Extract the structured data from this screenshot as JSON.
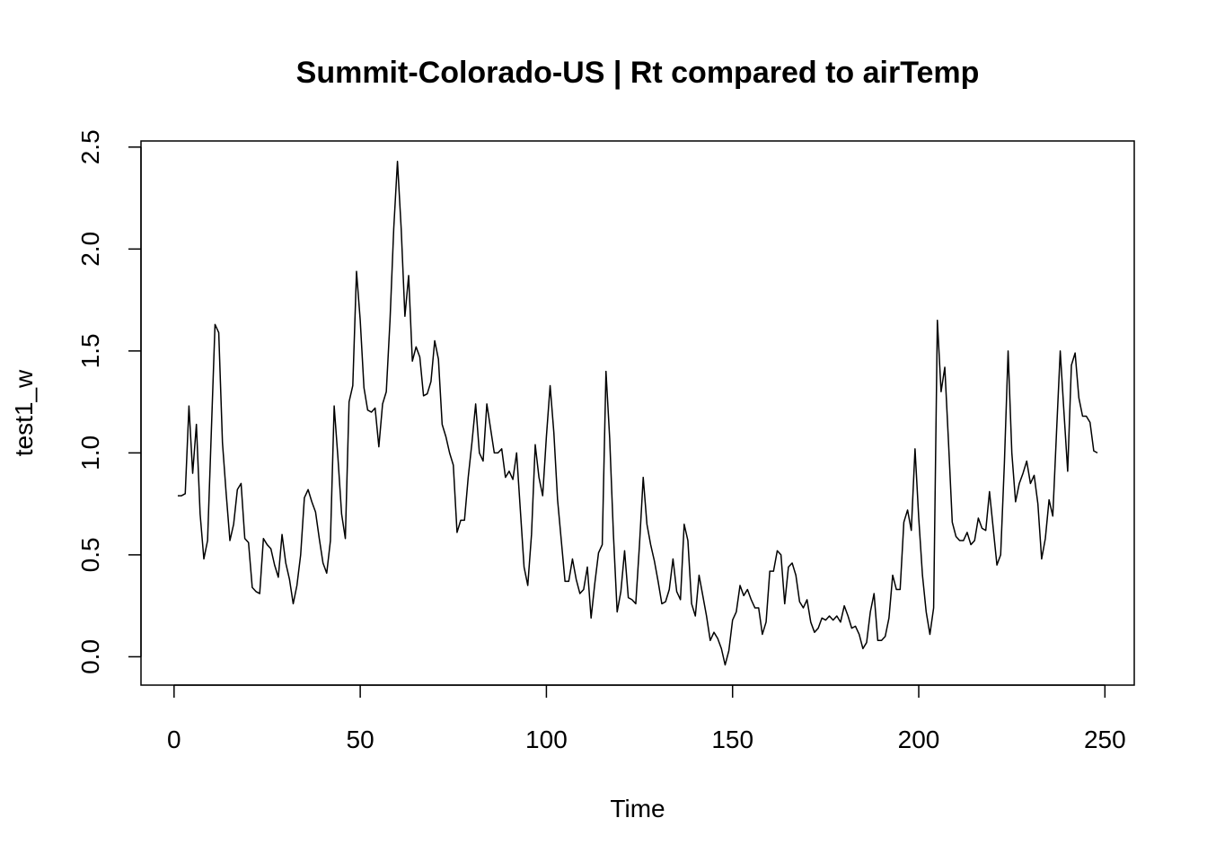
{
  "chart_data": {
    "type": "line",
    "title": "Summit-Colorado-US | Rt compared to airTemp",
    "x_label": "Time",
    "y_label": "test1_w",
    "color": "#000000",
    "xlim": [
      -8.88,
      257.88
    ],
    "ylim": [
      -0.139,
      2.53
    ],
    "xticks": [
      0,
      50,
      100,
      150,
      200,
      250
    ],
    "yticks": [
      {
        "value": 0,
        "label": "0.0"
      },
      0.5,
      {
        "value": 1,
        "label": "1.0"
      },
      1.5,
      {
        "value": 2,
        "label": "2.0"
      },
      2.5
    ],
    "x": [
      1,
      2,
      3,
      4,
      5,
      6,
      7,
      8,
      9,
      10,
      11,
      12,
      13,
      14,
      15,
      16,
      17,
      18,
      19,
      20,
      21,
      22,
      23,
      24,
      25,
      26,
      27,
      28,
      29,
      30,
      31,
      32,
      33,
      34,
      35,
      36,
      37,
      38,
      39,
      40,
      41,
      42,
      43,
      44,
      45,
      46,
      47,
      48,
      49,
      50,
      51,
      52,
      53,
      54,
      55,
      56,
      57,
      58,
      59,
      60,
      61,
      62,
      63,
      64,
      65,
      66,
      67,
      68,
      69,
      70,
      71,
      72,
      73,
      74,
      75,
      76,
      77,
      78,
      79,
      80,
      81,
      82,
      83,
      84,
      85,
      86,
      87,
      88,
      89,
      90,
      91,
      92,
      93,
      94,
      95,
      96,
      97,
      98,
      99,
      100,
      101,
      102,
      103,
      104,
      105,
      106,
      107,
      108,
      109,
      110,
      111,
      112,
      113,
      114,
      115,
      116,
      117,
      118,
      119,
      120,
      121,
      122,
      123,
      124,
      125,
      126,
      127,
      128,
      129,
      130,
      131,
      132,
      133,
      134,
      135,
      136,
      137,
      138,
      139,
      140,
      141,
      142,
      143,
      144,
      145,
      146,
      147,
      148,
      149,
      150,
      151,
      152,
      153,
      154,
      155,
      156,
      157,
      158,
      159,
      160,
      161,
      162,
      163,
      164,
      165,
      166,
      167,
      168,
      169,
      170,
      171,
      172,
      173,
      174,
      175,
      176,
      177,
      178,
      179,
      180,
      181,
      182,
      183,
      184,
      185,
      186,
      187,
      188,
      189,
      190,
      191,
      192,
      193,
      194,
      195,
      196,
      197,
      198,
      199,
      200,
      201,
      202,
      203,
      204,
      205,
      206,
      207,
      208,
      209,
      210,
      211,
      212,
      213,
      214,
      215,
      216,
      217,
      218,
      219,
      220,
      221,
      222,
      223,
      224,
      225,
      226,
      227,
      228,
      229,
      230,
      231,
      232,
      233,
      234,
      235,
      236,
      237,
      238,
      239,
      240,
      241,
      242,
      243,
      244,
      245,
      246,
      247,
      248
    ],
    "values": [
      0.79,
      0.79,
      0.8,
      1.23,
      0.9,
      1.14,
      0.7,
      0.48,
      0.57,
      1.1,
      1.63,
      1.59,
      1.05,
      0.8,
      0.57,
      0.65,
      0.82,
      0.85,
      0.58,
      0.56,
      0.34,
      0.32,
      0.31,
      0.58,
      0.55,
      0.53,
      0.45,
      0.39,
      0.6,
      0.46,
      0.38,
      0.26,
      0.35,
      0.5,
      0.78,
      0.82,
      0.76,
      0.71,
      0.58,
      0.46,
      0.41,
      0.57,
      1.23,
      0.98,
      0.7,
      0.58,
      1.25,
      1.33,
      1.89,
      1.65,
      1.32,
      1.21,
      1.2,
      1.22,
      1.03,
      1.24,
      1.3,
      1.65,
      2.1,
      2.43,
      2.1,
      1.67,
      1.87,
      1.45,
      1.52,
      1.47,
      1.28,
      1.29,
      1.35,
      1.55,
      1.46,
      1.14,
      1.08,
      1.0,
      0.94,
      0.61,
      0.67,
      0.67,
      0.88,
      1.05,
      1.24,
      1.0,
      0.96,
      1.24,
      1.12,
      1.0,
      1.0,
      1.02,
      0.88,
      0.91,
      0.87,
      1.0,
      0.72,
      0.44,
      0.35,
      0.6,
      1.04,
      0.88,
      0.79,
      1.08,
      1.33,
      1.1,
      0.77,
      0.57,
      0.37,
      0.37,
      0.48,
      0.38,
      0.31,
      0.33,
      0.44,
      0.19,
      0.36,
      0.51,
      0.55,
      1.4,
      1.07,
      0.6,
      0.22,
      0.32,
      0.52,
      0.29,
      0.28,
      0.26,
      0.55,
      0.88,
      0.65,
      0.55,
      0.47,
      0.37,
      0.26,
      0.27,
      0.33,
      0.48,
      0.32,
      0.28,
      0.65,
      0.57,
      0.26,
      0.2,
      0.4,
      0.3,
      0.2,
      0.08,
      0.12,
      0.09,
      0.04,
      -0.04,
      0.03,
      0.18,
      0.22,
      0.35,
      0.3,
      0.33,
      0.28,
      0.24,
      0.24,
      0.11,
      0.17,
      0.42,
      0.42,
      0.52,
      0.5,
      0.26,
      0.44,
      0.46,
      0.4,
      0.27,
      0.24,
      0.28,
      0.17,
      0.12,
      0.14,
      0.19,
      0.18,
      0.2,
      0.18,
      0.2,
      0.17,
      0.25,
      0.2,
      0.14,
      0.15,
      0.11,
      0.04,
      0.07,
      0.22,
      0.31,
      0.08,
      0.08,
      0.1,
      0.19,
      0.4,
      0.33,
      0.33,
      0.66,
      0.72,
      0.62,
      1.02,
      0.68,
      0.4,
      0.22,
      0.11,
      0.24,
      1.65,
      1.3,
      1.42,
      1.05,
      0.66,
      0.59,
      0.57,
      0.57,
      0.61,
      0.55,
      0.57,
      0.68,
      0.63,
      0.62,
      0.81,
      0.63,
      0.45,
      0.5,
      0.95,
      1.5,
      1.0,
      0.76,
      0.85,
      0.9,
      0.96,
      0.85,
      0.89,
      0.75,
      0.48,
      0.58,
      0.77,
      0.69,
      1.1,
      1.5,
      1.2,
      0.91,
      1.43,
      1.49,
      1.27,
      1.18,
      1.18,
      1.15,
      1.01,
      1.0
    ]
  }
}
